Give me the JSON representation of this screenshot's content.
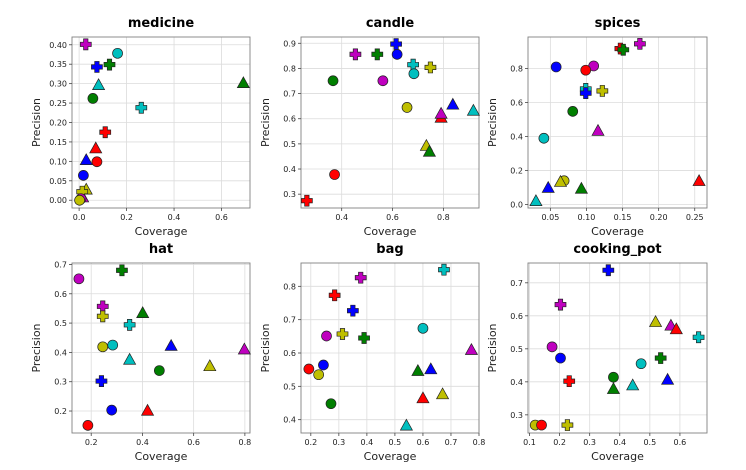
{
  "figure": {
    "layout": "2x3 grid of scatter subplots"
  },
  "legend_encoding": {
    "colors": {
      "red": "#ff0000",
      "blue": "#0000ff",
      "green": "#007f00",
      "cyan": "#00bfbf",
      "magenta": "#bf00bf",
      "yellow": "#bfbf00"
    },
    "markers": [
      "circle",
      "triangle",
      "plus"
    ]
  },
  "chart_data": [
    {
      "type": "scatter",
      "title": "medicine",
      "xlabel": "Coverage",
      "ylabel": "Precision",
      "xlim": [
        -0.03,
        0.72
      ],
      "ylim": [
        -0.02,
        0.42
      ],
      "xticks": [
        "0.0",
        "0.2",
        "0.4",
        "0.6"
      ],
      "xtick_values": [
        0.0,
        0.2,
        0.4,
        0.6
      ],
      "yticks": [
        "0.00",
        "0.05",
        "0.10",
        "0.15",
        "0.20",
        "0.25",
        "0.30",
        "0.35",
        "0.40"
      ],
      "ytick_values": [
        0.0,
        0.05,
        0.1,
        0.15,
        0.2,
        0.25,
        0.3,
        0.35,
        0.4
      ],
      "grid": true,
      "points": [
        {
          "color": "magenta",
          "marker": "plus",
          "x": 0.028,
          "y": 0.401
        },
        {
          "color": "cyan",
          "marker": "circle",
          "x": 0.162,
          "y": 0.378
        },
        {
          "color": "blue",
          "marker": "plus",
          "x": 0.075,
          "y": 0.343
        },
        {
          "color": "green",
          "marker": "plus",
          "x": 0.128,
          "y": 0.349
        },
        {
          "color": "cyan",
          "marker": "triangle",
          "x": 0.082,
          "y": 0.297
        },
        {
          "color": "green",
          "marker": "circle",
          "x": 0.058,
          "y": 0.262
        },
        {
          "color": "green",
          "marker": "triangle",
          "x": 0.692,
          "y": 0.302
        },
        {
          "color": "cyan",
          "marker": "plus",
          "x": 0.262,
          "y": 0.238
        },
        {
          "color": "red",
          "marker": "plus",
          "x": 0.11,
          "y": 0.175
        },
        {
          "color": "red",
          "marker": "triangle",
          "x": 0.07,
          "y": 0.134
        },
        {
          "color": "blue",
          "marker": "triangle",
          "x": 0.03,
          "y": 0.104
        },
        {
          "color": "red",
          "marker": "circle",
          "x": 0.075,
          "y": 0.099
        },
        {
          "color": "blue",
          "marker": "circle",
          "x": 0.018,
          "y": 0.064
        },
        {
          "color": "magenta",
          "marker": "triangle",
          "x": 0.015,
          "y": 0.008
        },
        {
          "color": "yellow",
          "marker": "triangle",
          "x": 0.03,
          "y": 0.028
        },
        {
          "color": "yellow",
          "marker": "plus",
          "x": 0.013,
          "y": 0.022
        },
        {
          "color": "magenta",
          "marker": "circle",
          "x": 0.008,
          "y": 0.004
        },
        {
          "color": "yellow",
          "marker": "circle",
          "x": 0.002,
          "y": 0.0
        }
      ]
    },
    {
      "type": "scatter",
      "title": "candle",
      "xlabel": "Coverage",
      "ylabel": "Precision",
      "xlim": [
        0.24,
        0.94
      ],
      "ylim": [
        0.245,
        0.925
      ],
      "xticks": [
        "0.4",
        "0.6",
        "0.8"
      ],
      "xtick_values": [
        0.4,
        0.6,
        0.8
      ],
      "yticks": [
        "0.3",
        "0.4",
        "0.5",
        "0.6",
        "0.7",
        "0.8",
        "0.9"
      ],
      "ytick_values": [
        0.3,
        0.4,
        0.5,
        0.6,
        0.7,
        0.8,
        0.9
      ],
      "grid": true,
      "points": [
        {
          "color": "blue",
          "marker": "plus",
          "x": 0.614,
          "y": 0.897
        },
        {
          "color": "magenta",
          "marker": "plus",
          "x": 0.454,
          "y": 0.856
        },
        {
          "color": "green",
          "marker": "plus",
          "x": 0.54,
          "y": 0.856
        },
        {
          "color": "blue",
          "marker": "circle",
          "x": 0.618,
          "y": 0.856
        },
        {
          "color": "cyan",
          "marker": "plus",
          "x": 0.681,
          "y": 0.815
        },
        {
          "color": "yellow",
          "marker": "plus",
          "x": 0.749,
          "y": 0.804
        },
        {
          "color": "cyan",
          "marker": "circle",
          "x": 0.684,
          "y": 0.779
        },
        {
          "color": "green",
          "marker": "circle",
          "x": 0.366,
          "y": 0.751
        },
        {
          "color": "magenta",
          "marker": "circle",
          "x": 0.562,
          "y": 0.751
        },
        {
          "color": "yellow",
          "marker": "circle",
          "x": 0.657,
          "y": 0.645
        },
        {
          "color": "blue",
          "marker": "triangle",
          "x": 0.837,
          "y": 0.657
        },
        {
          "color": "cyan",
          "marker": "triangle",
          "x": 0.918,
          "y": 0.633
        },
        {
          "color": "red",
          "marker": "triangle",
          "x": 0.791,
          "y": 0.605
        },
        {
          "color": "magenta",
          "marker": "triangle",
          "x": 0.791,
          "y": 0.621
        },
        {
          "color": "yellow",
          "marker": "triangle",
          "x": 0.733,
          "y": 0.493
        },
        {
          "color": "green",
          "marker": "triangle",
          "x": 0.745,
          "y": 0.47
        },
        {
          "color": "red",
          "marker": "circle",
          "x": 0.372,
          "y": 0.378
        },
        {
          "color": "red",
          "marker": "plus",
          "x": 0.263,
          "y": 0.274
        }
      ]
    },
    {
      "type": "scatter",
      "title": "spices",
      "xlabel": "Coverage",
      "ylabel": "Precision",
      "xlim": [
        0.019,
        0.267
      ],
      "ylim": [
        -0.02,
        0.985
      ],
      "xticks": [
        "0.05",
        "0.10",
        "0.15",
        "0.20",
        "0.25"
      ],
      "xtick_values": [
        0.05,
        0.1,
        0.15,
        0.2,
        0.25
      ],
      "yticks": [
        "0.0",
        "0.2",
        "0.4",
        "0.6",
        "0.8"
      ],
      "ytick_values": [
        0.0,
        0.2,
        0.4,
        0.6,
        0.8
      ],
      "grid": true,
      "points": [
        {
          "color": "magenta",
          "marker": "plus",
          "x": 0.174,
          "y": 0.945
        },
        {
          "color": "red",
          "marker": "plus",
          "x": 0.147,
          "y": 0.917
        },
        {
          "color": "green",
          "marker": "plus",
          "x": 0.151,
          "y": 0.91
        },
        {
          "color": "blue",
          "marker": "circle",
          "x": 0.058,
          "y": 0.809
        },
        {
          "color": "magenta",
          "marker": "circle",
          "x": 0.11,
          "y": 0.815
        },
        {
          "color": "red",
          "marker": "circle",
          "x": 0.099,
          "y": 0.79
        },
        {
          "color": "cyan",
          "marker": "plus",
          "x": 0.099,
          "y": 0.68
        },
        {
          "color": "blue",
          "marker": "plus",
          "x": 0.099,
          "y": 0.655
        },
        {
          "color": "yellow",
          "marker": "plus",
          "x": 0.122,
          "y": 0.668
        },
        {
          "color": "green",
          "marker": "circle",
          "x": 0.081,
          "y": 0.548
        },
        {
          "color": "magenta",
          "marker": "triangle",
          "x": 0.116,
          "y": 0.435
        },
        {
          "color": "cyan",
          "marker": "circle",
          "x": 0.041,
          "y": 0.39
        },
        {
          "color": "yellow",
          "marker": "circle",
          "x": 0.069,
          "y": 0.14
        },
        {
          "color": "yellow",
          "marker": "triangle",
          "x": 0.064,
          "y": 0.135
        },
        {
          "color": "red",
          "marker": "triangle",
          "x": 0.256,
          "y": 0.14
        },
        {
          "color": "blue",
          "marker": "triangle",
          "x": 0.047,
          "y": 0.1
        },
        {
          "color": "green",
          "marker": "triangle",
          "x": 0.093,
          "y": 0.095
        },
        {
          "color": "cyan",
          "marker": "triangle",
          "x": 0.03,
          "y": 0.022
        }
      ]
    },
    {
      "type": "scatter",
      "title": "hat",
      "xlabel": "Coverage",
      "ylabel": "Precision",
      "xlim": [
        0.125,
        0.82
      ],
      "ylim": [
        0.125,
        0.705
      ],
      "xticks": [
        "0.2",
        "0.4",
        "0.6",
        "0.8"
      ],
      "xtick_values": [
        0.2,
        0.4,
        0.6,
        0.8
      ],
      "yticks": [
        "0.2",
        "0.3",
        "0.4",
        "0.5",
        "0.6",
        "0.7"
      ],
      "ytick_values": [
        0.2,
        0.3,
        0.4,
        0.5,
        0.6,
        0.7
      ],
      "grid": true,
      "points": [
        {
          "color": "green",
          "marker": "plus",
          "x": 0.32,
          "y": 0.68
        },
        {
          "color": "magenta",
          "marker": "circle",
          "x": 0.152,
          "y": 0.651
        },
        {
          "color": "magenta",
          "marker": "plus",
          "x": 0.245,
          "y": 0.557
        },
        {
          "color": "green",
          "marker": "triangle",
          "x": 0.401,
          "y": 0.535
        },
        {
          "color": "yellow",
          "marker": "plus",
          "x": 0.245,
          "y": 0.523
        },
        {
          "color": "cyan",
          "marker": "plus",
          "x": 0.35,
          "y": 0.494
        },
        {
          "color": "cyan",
          "marker": "circle",
          "x": 0.284,
          "y": 0.425
        },
        {
          "color": "yellow",
          "marker": "circle",
          "x": 0.245,
          "y": 0.419
        },
        {
          "color": "blue",
          "marker": "triangle",
          "x": 0.512,
          "y": 0.423
        },
        {
          "color": "magenta",
          "marker": "triangle",
          "x": 0.798,
          "y": 0.411
        },
        {
          "color": "cyan",
          "marker": "triangle",
          "x": 0.35,
          "y": 0.376
        },
        {
          "color": "yellow",
          "marker": "triangle",
          "x": 0.663,
          "y": 0.354
        },
        {
          "color": "green",
          "marker": "circle",
          "x": 0.466,
          "y": 0.338
        },
        {
          "color": "blue",
          "marker": "plus",
          "x": 0.24,
          "y": 0.302
        },
        {
          "color": "blue",
          "marker": "circle",
          "x": 0.28,
          "y": 0.203
        },
        {
          "color": "red",
          "marker": "triangle",
          "x": 0.42,
          "y": 0.202
        },
        {
          "color": "red",
          "marker": "circle",
          "x": 0.187,
          "y": 0.151
        }
      ]
    },
    {
      "type": "scatter",
      "title": "bag",
      "xlabel": "Coverage",
      "ylabel": "Precision",
      "xlim": [
        0.165,
        0.8
      ],
      "ylim": [
        0.36,
        0.87
      ],
      "xticks": [
        "0.2",
        "0.3",
        "0.4",
        "0.5",
        "0.6",
        "0.7",
        "0.8"
      ],
      "xtick_values": [
        0.2,
        0.3,
        0.4,
        0.5,
        0.6,
        0.7,
        0.8
      ],
      "yticks": [
        "0.4",
        "0.5",
        "0.6",
        "0.7",
        "0.8"
      ],
      "ytick_values": [
        0.4,
        0.5,
        0.6,
        0.7,
        0.8
      ],
      "grid": true,
      "points": [
        {
          "color": "cyan",
          "marker": "plus",
          "x": 0.675,
          "y": 0.85
        },
        {
          "color": "magenta",
          "marker": "plus",
          "x": 0.378,
          "y": 0.826
        },
        {
          "color": "red",
          "marker": "plus",
          "x": 0.285,
          "y": 0.773
        },
        {
          "color": "blue",
          "marker": "plus",
          "x": 0.35,
          "y": 0.727
        },
        {
          "color": "cyan",
          "marker": "circle",
          "x": 0.6,
          "y": 0.674
        },
        {
          "color": "yellow",
          "marker": "plus",
          "x": 0.313,
          "y": 0.657
        },
        {
          "color": "magenta",
          "marker": "circle",
          "x": 0.256,
          "y": 0.651
        },
        {
          "color": "green",
          "marker": "plus",
          "x": 0.39,
          "y": 0.645
        },
        {
          "color": "magenta",
          "marker": "triangle",
          "x": 0.773,
          "y": 0.61
        },
        {
          "color": "blue",
          "marker": "circle",
          "x": 0.245,
          "y": 0.564
        },
        {
          "color": "red",
          "marker": "circle",
          "x": 0.193,
          "y": 0.552
        },
        {
          "color": "blue",
          "marker": "triangle",
          "x": 0.628,
          "y": 0.552
        },
        {
          "color": "green",
          "marker": "triangle",
          "x": 0.582,
          "y": 0.547
        },
        {
          "color": "yellow",
          "marker": "circle",
          "x": 0.228,
          "y": 0.535
        },
        {
          "color": "yellow",
          "marker": "triangle",
          "x": 0.67,
          "y": 0.477
        },
        {
          "color": "red",
          "marker": "triangle",
          "x": 0.6,
          "y": 0.465
        },
        {
          "color": "green",
          "marker": "circle",
          "x": 0.272,
          "y": 0.448
        },
        {
          "color": "cyan",
          "marker": "triangle",
          "x": 0.541,
          "y": 0.383
        }
      ]
    },
    {
      "type": "scatter",
      "title": "cooking_pot",
      "xlabel": "Coverage",
      "ylabel": "Precision",
      "xlim": [
        0.095,
        0.69
      ],
      "ylim": [
        0.245,
        0.76
      ],
      "xticks": [
        "0.1",
        "0.2",
        "0.3",
        "0.4",
        "0.5",
        "0.6"
      ],
      "xtick_values": [
        0.1,
        0.2,
        0.3,
        0.4,
        0.5,
        0.6
      ],
      "yticks": [
        "0.3",
        "0.4",
        "0.5",
        "0.6",
        "0.7"
      ],
      "ytick_values": [
        0.3,
        0.4,
        0.5,
        0.6,
        0.7
      ],
      "grid": true,
      "points": [
        {
          "color": "blue",
          "marker": "plus",
          "x": 0.362,
          "y": 0.738
        },
        {
          "color": "magenta",
          "marker": "plus",
          "x": 0.203,
          "y": 0.634
        },
        {
          "color": "yellow",
          "marker": "triangle",
          "x": 0.519,
          "y": 0.582
        },
        {
          "color": "magenta",
          "marker": "triangle",
          "x": 0.57,
          "y": 0.571
        },
        {
          "color": "red",
          "marker": "triangle",
          "x": 0.588,
          "y": 0.56
        },
        {
          "color": "cyan",
          "marker": "plus",
          "x": 0.662,
          "y": 0.535
        },
        {
          "color": "magenta",
          "marker": "circle",
          "x": 0.175,
          "y": 0.506
        },
        {
          "color": "blue",
          "marker": "circle",
          "x": 0.203,
          "y": 0.472
        },
        {
          "color": "green",
          "marker": "plus",
          "x": 0.536,
          "y": 0.472
        },
        {
          "color": "cyan",
          "marker": "circle",
          "x": 0.471,
          "y": 0.455
        },
        {
          "color": "green",
          "marker": "circle",
          "x": 0.379,
          "y": 0.414
        },
        {
          "color": "blue",
          "marker": "triangle",
          "x": 0.559,
          "y": 0.407
        },
        {
          "color": "red",
          "marker": "plus",
          "x": 0.232,
          "y": 0.402
        },
        {
          "color": "cyan",
          "marker": "triangle",
          "x": 0.443,
          "y": 0.39
        },
        {
          "color": "green",
          "marker": "triangle",
          "x": 0.379,
          "y": 0.379
        },
        {
          "color": "yellow",
          "marker": "circle",
          "x": 0.119,
          "y": 0.269
        },
        {
          "color": "red",
          "marker": "circle",
          "x": 0.14,
          "y": 0.269
        },
        {
          "color": "yellow",
          "marker": "plus",
          "x": 0.226,
          "y": 0.269
        }
      ]
    }
  ]
}
